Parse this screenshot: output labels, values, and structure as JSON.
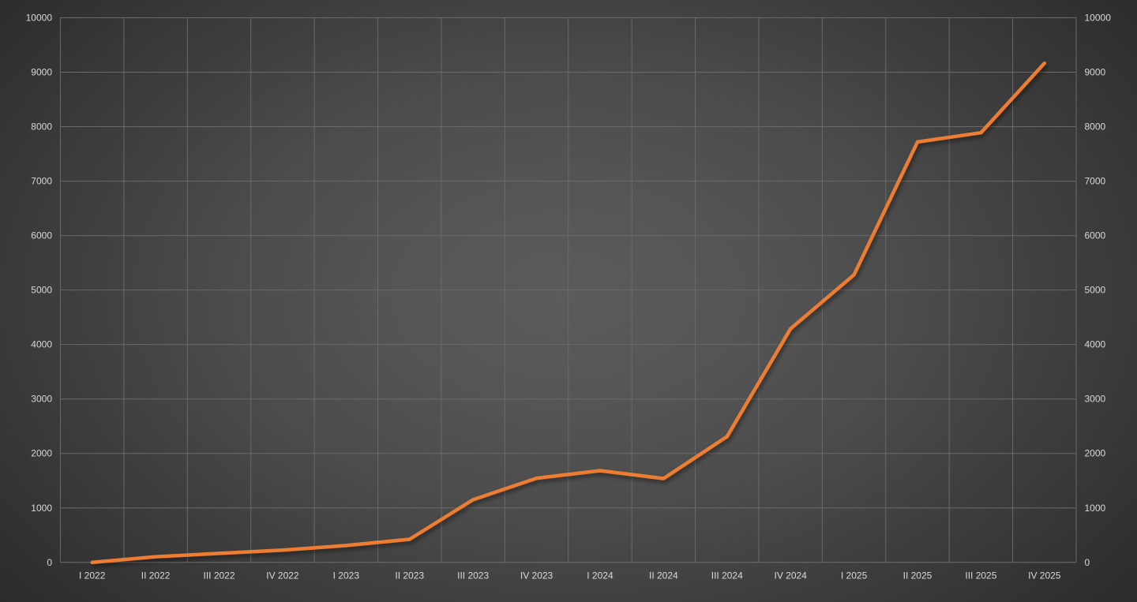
{
  "chart_data": {
    "type": "line",
    "title": "",
    "xlabel": "",
    "ylabel": "",
    "legend": false,
    "grid": true,
    "categories": [
      "I 2022",
      "II 2022",
      "III 2022",
      "IV 2022",
      "I 2023",
      "II 2023",
      "III 2023",
      "IV 2023",
      "I 2024",
      "II 2024",
      "III 2024",
      "IV 2024",
      "I 2025",
      "II 2025",
      "III 2025",
      "IV 2025"
    ],
    "values": [
      0,
      105,
      165,
      225,
      310,
      425,
      1150,
      1545,
      1685,
      1540,
      2310,
      4290,
      5280,
      7720,
      7890,
      9165
    ],
    "ylim": [
      0,
      10000
    ],
    "y_tick_interval": 1000,
    "y_tick_labels": [
      "0",
      "1000",
      "2000",
      "3000",
      "4000",
      "5000",
      "6000",
      "7000",
      "8000",
      "9000",
      "10000"
    ],
    "axes": {
      "left_axis_visible": true,
      "right_axis_visible": true,
      "x_labels_position": "below",
      "categories_between_gridlines": true
    },
    "colors": {
      "series_line": "#ED7D31",
      "gridline": "#6A6A6A",
      "axis_line": "#6F6F6F",
      "tick_label": "#D9D9D9",
      "background_center": "#5B5B5B",
      "background_edge": "#272727",
      "line_shadow": "#000000"
    }
  }
}
